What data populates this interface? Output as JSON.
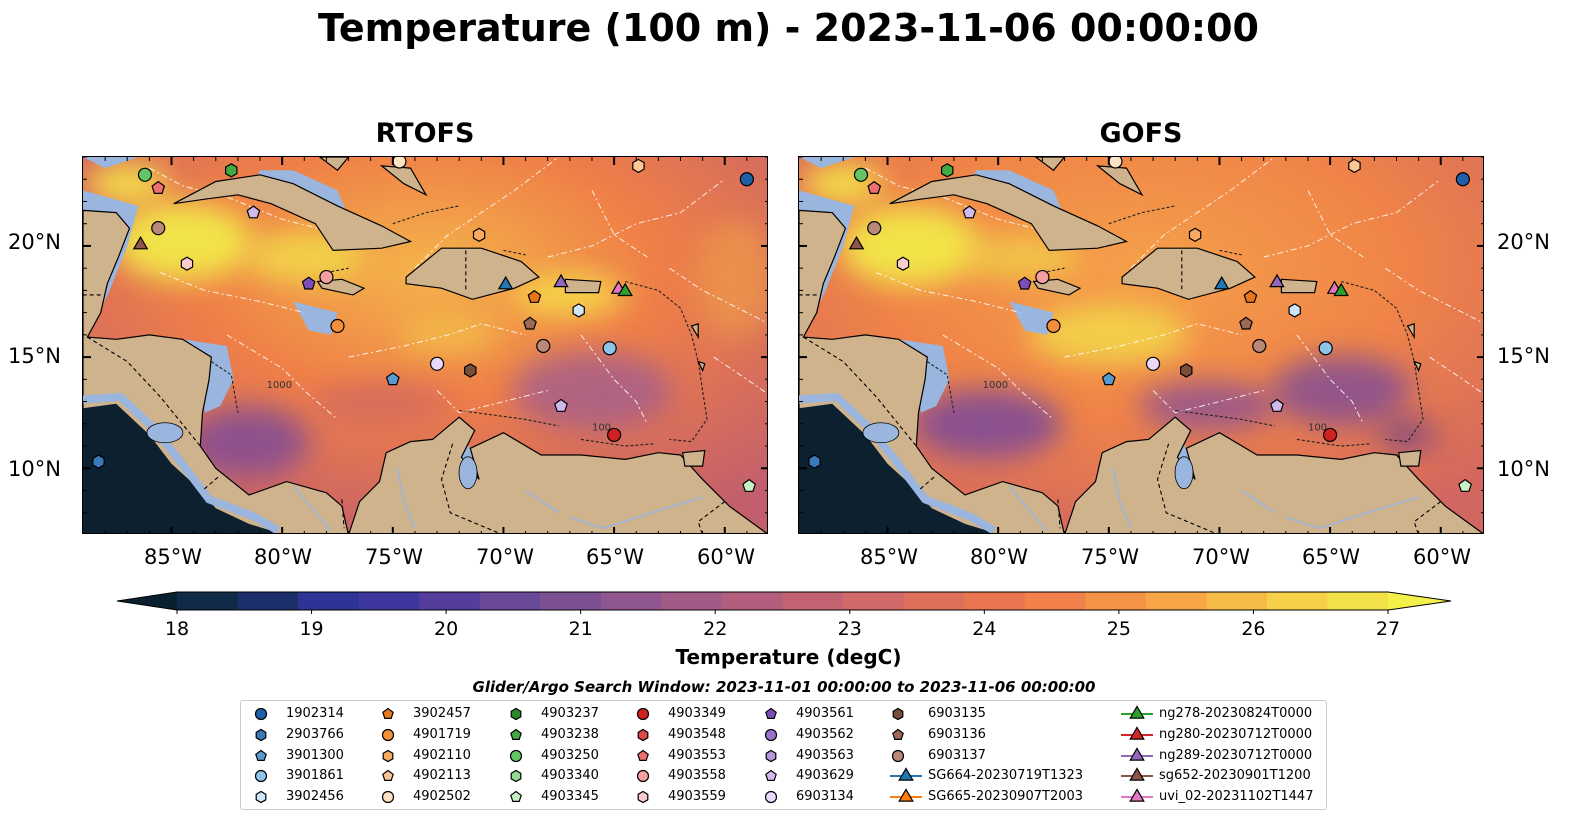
{
  "title": "Temperature (100 m) - 2023-11-06 00:00:00",
  "panels": [
    {
      "title": "RTOFS"
    },
    {
      "title": "GOFS"
    }
  ],
  "map": {
    "lon_range": [
      -89,
      -58
    ],
    "lat_range": [
      7,
      24
    ],
    "lat_ticks": [
      "20°N",
      "15°N",
      "10°N"
    ],
    "lon_ticks": [
      "85°W",
      "80°W",
      "75°W",
      "70°W",
      "65°W",
      "60°W"
    ],
    "colors": {
      "land": "#cfb38d",
      "water_shallow": "#9ab5de",
      "deep_pacific": "#0d2030",
      "warm": "#ef7f48",
      "hot": "#f6e24a",
      "cool": "#7a4a9a"
    },
    "contour_labels": [
      "100",
      "1000"
    ]
  },
  "colorbar": {
    "label": "Temperature (degC)",
    "ticks": [
      "18",
      "19",
      "20",
      "21",
      "22",
      "23",
      "24",
      "25",
      "26",
      "27"
    ],
    "range": [
      18,
      27
    ]
  },
  "legend": {
    "search_window": "Glider/Argo Search Window: 2023-11-01 00:00:00 to 2023-11-06 00:00:00",
    "columns": [
      [
        {
          "label": "1902314",
          "marker": "circle",
          "color": "#1f5fa8"
        },
        {
          "label": "2903766",
          "marker": "hexagon",
          "color": "#3a7ab8"
        },
        {
          "label": "3901300",
          "marker": "pentagon",
          "color": "#5a9ad0"
        },
        {
          "label": "3901861",
          "marker": "circle",
          "color": "#8ec4ea"
        },
        {
          "label": "3902456",
          "marker": "hexagon",
          "color": "#cfe6f8"
        }
      ],
      [
        {
          "label": "3902457",
          "marker": "pentagon",
          "color": "#e8761a"
        },
        {
          "label": "4901719",
          "marker": "circle",
          "color": "#f38f3a"
        },
        {
          "label": "4902110",
          "marker": "hexagon",
          "color": "#f8ab60"
        },
        {
          "label": "4902113",
          "marker": "pentagon",
          "color": "#fbc792"
        },
        {
          "label": "4902502",
          "marker": "circle",
          "color": "#fde2c4"
        }
      ],
      [
        {
          "label": "4903237",
          "marker": "hexagon",
          "color": "#2a8a2a"
        },
        {
          "label": "4903238",
          "marker": "pentagon",
          "color": "#44a844"
        },
        {
          "label": "4903250",
          "marker": "circle",
          "color": "#62c462"
        },
        {
          "label": "4903340",
          "marker": "hexagon",
          "color": "#92dc92"
        },
        {
          "label": "4903345",
          "marker": "pentagon",
          "color": "#c6f2c6"
        }
      ],
      [
        {
          "label": "4903349",
          "marker": "circle",
          "color": "#d12222"
        },
        {
          "label": "4903548",
          "marker": "hexagon",
          "color": "#e04848"
        },
        {
          "label": "4903553",
          "marker": "pentagon",
          "color": "#ec7070"
        },
        {
          "label": "4903558",
          "marker": "circle",
          "color": "#f5a0a0"
        },
        {
          "label": "4903559",
          "marker": "hexagon",
          "color": "#fbcccc"
        }
      ],
      [
        {
          "label": "4903561",
          "marker": "pentagon",
          "color": "#7b4eb8"
        },
        {
          "label": "4903562",
          "marker": "circle",
          "color": "#9a72cc"
        },
        {
          "label": "4903563",
          "marker": "hexagon",
          "color": "#b596dc"
        },
        {
          "label": "4903629",
          "marker": "pentagon",
          "color": "#d0baec"
        },
        {
          "label": "6903134",
          "marker": "circle",
          "color": "#ead8fa"
        }
      ],
      [
        {
          "label": "6903135",
          "marker": "hexagon",
          "color": "#7a4e3a"
        },
        {
          "label": "6903136",
          "marker": "pentagon",
          "color": "#9a6a56"
        },
        {
          "label": "6903137",
          "marker": "circle",
          "color": "#b98876"
        },
        {
          "label": "SG664-20230719T1323",
          "marker": "triangle",
          "color": "#1f77b4",
          "line": true
        },
        {
          "label": "SG665-20230907T2003",
          "marker": "triangle",
          "color": "#ff7f0e",
          "line": true
        }
      ],
      [
        {
          "label": "ng278-20230824T0000",
          "marker": "triangle",
          "color": "#2ca02c",
          "line": true
        },
        {
          "label": "ng280-20230712T0000",
          "marker": "triangle",
          "color": "#d62728",
          "line": true
        },
        {
          "label": "ng289-20230712T0000",
          "marker": "triangle",
          "color": "#9467bd",
          "line": true
        },
        {
          "label": "sg652-20230901T1200",
          "marker": "triangle",
          "color": "#8c564b",
          "line": true
        },
        {
          "label": "uvi_02-20231102T1447",
          "marker": "triangle",
          "color": "#e377c2",
          "line": true
        }
      ]
    ]
  },
  "platforms": [
    {
      "lon": -86.2,
      "lat": 23.2,
      "marker": "circle",
      "color": "#62c462"
    },
    {
      "lon": -82.3,
      "lat": 23.4,
      "marker": "hexagon",
      "color": "#44a844"
    },
    {
      "lon": -85.6,
      "lat": 22.6,
      "marker": "pentagon",
      "color": "#ec7070"
    },
    {
      "lon": -81.3,
      "lat": 21.5,
      "marker": "pentagon",
      "color": "#d0baec"
    },
    {
      "lon": -85.6,
      "lat": 20.8,
      "marker": "circle",
      "color": "#b98876"
    },
    {
      "lon": -86.4,
      "lat": 20.1,
      "marker": "triangle",
      "color": "#8c564b"
    },
    {
      "lon": -84.3,
      "lat": 19.2,
      "marker": "hexagon",
      "color": "#fbcccc"
    },
    {
      "lon": -78.8,
      "lat": 18.3,
      "marker": "pentagon",
      "color": "#7b4eb8"
    },
    {
      "lon": -78.0,
      "lat": 18.6,
      "marker": "circle",
      "color": "#f5a0a0"
    },
    {
      "lon": -77.5,
      "lat": 16.4,
      "marker": "circle",
      "color": "#f38f3a"
    },
    {
      "lon": -75.0,
      "lat": 14.0,
      "marker": "pentagon",
      "color": "#5a9ad0"
    },
    {
      "lon": -73.0,
      "lat": 14.7,
      "marker": "circle",
      "color": "#ead8fa"
    },
    {
      "lon": -71.5,
      "lat": 14.4,
      "marker": "hexagon",
      "color": "#7a4e3a"
    },
    {
      "lon": -71.1,
      "lat": 20.5,
      "marker": "hexagon",
      "color": "#f8ab60"
    },
    {
      "lon": -69.9,
      "lat": 18.3,
      "marker": "triangle",
      "color": "#1f77b4"
    },
    {
      "lon": -68.6,
      "lat": 17.7,
      "marker": "pentagon",
      "color": "#e8761a"
    },
    {
      "lon": -67.4,
      "lat": 18.4,
      "marker": "triangle",
      "color": "#9467bd"
    },
    {
      "lon": -68.8,
      "lat": 16.5,
      "marker": "pentagon",
      "color": "#9a6a56"
    },
    {
      "lon": -68.2,
      "lat": 15.5,
      "marker": "circle",
      "color": "#b98876"
    },
    {
      "lon": -66.6,
      "lat": 17.1,
      "marker": "hexagon",
      "color": "#cfe6f8"
    },
    {
      "lon": -65.2,
      "lat": 15.4,
      "marker": "circle",
      "color": "#8ec4ea"
    },
    {
      "lon": -67.4,
      "lat": 12.8,
      "marker": "pentagon",
      "color": "#d0baec"
    },
    {
      "lon": -65.0,
      "lat": 11.5,
      "marker": "circle",
      "color": "#d12222"
    },
    {
      "lon": -64.8,
      "lat": 18.1,
      "marker": "triangle",
      "color": "#e377c2"
    },
    {
      "lon": -64.5,
      "lat": 18.0,
      "marker": "triangle",
      "color": "#2ca02c"
    },
    {
      "lon": -59.0,
      "lat": 23.0,
      "marker": "circle",
      "color": "#1f5fa8"
    },
    {
      "lon": -63.9,
      "lat": 23.6,
      "marker": "hexagon",
      "color": "#fbc792"
    },
    {
      "lon": -74.7,
      "lat": 23.8,
      "marker": "circle",
      "color": "#fde2c4"
    },
    {
      "lon": -58.9,
      "lat": 9.2,
      "marker": "pentagon",
      "color": "#c6f2c6"
    },
    {
      "lon": -88.3,
      "lat": 10.3,
      "marker": "hexagon",
      "color": "#3a7ab8"
    }
  ]
}
